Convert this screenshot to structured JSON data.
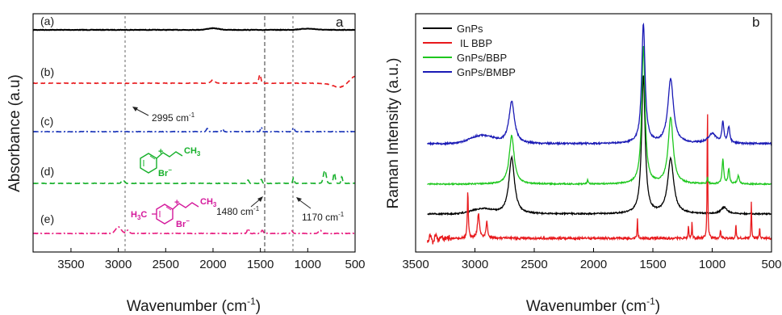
{
  "chart_data": [
    {
      "type": "line",
      "panel": "a",
      "xlabel": "Wavenumber (cm",
      "xlabel_sup": "-1",
      "xlabel_close": ")",
      "ylabel": "Absorbance (a.u)",
      "xlim": [
        3900,
        500
      ],
      "x_reversed": true,
      "x_ticks": [
        "3500",
        "3000",
        "2500",
        "2000",
        "1500",
        "1000",
        "500"
      ],
      "grid": false,
      "legend": "none",
      "series": [
        {
          "name": "(a)",
          "color": "#000000",
          "style": "solid"
        },
        {
          "name": "(b)",
          "color": "#e8191c",
          "style": "dashed"
        },
        {
          "name": "(c)",
          "color": "#1732b8",
          "style": "dash-dot"
        },
        {
          "name": "(d)",
          "color": "#16b02a",
          "style": "dashed"
        },
        {
          "name": "(e)",
          "color": "#e8197e",
          "style": "dash-dot"
        }
      ],
      "annotations": [
        {
          "text": "2995 cm",
          "sup": "-1"
        },
        {
          "text": "1480 cm",
          "sup": "-1"
        },
        {
          "text": "1170 cm",
          "sup": "-1"
        }
      ],
      "reference_lines_x": [
        3000,
        1500,
        1170
      ],
      "structure_labels": {
        "d": {
          "plus": "+",
          "ch3": "CH",
          "ch3_sub": "3",
          "anion": "Br",
          "anion_sup": "−"
        },
        "e": {
          "h3c": "H",
          "h3c_sub": "3",
          "h3c_c": "C",
          "plus": "+",
          "ch3": "CH",
          "ch3_sub": "3",
          "anion": "Br",
          "anion_sup": "−"
        }
      }
    },
    {
      "type": "line",
      "panel": "b",
      "xlabel": "Wavenumber (cm",
      "xlabel_sup": "-1",
      "xlabel_close": ")",
      "ylabel": "Raman Intensity (a.u.)",
      "xlim": [
        3500,
        500
      ],
      "x_reversed": true,
      "x_ticks": [
        "3500",
        "3000",
        "2500",
        "2000",
        "1500",
        "1000",
        "500"
      ],
      "grid": false,
      "legend": "top-left",
      "series": [
        {
          "name": "GnPs",
          "color": "#000000"
        },
        {
          "name": "IL BBP",
          "color": "#e8191c"
        },
        {
          "name": "GnPs/BBP",
          "color": "#1ec71e"
        },
        {
          "name": "GnPs/BMBP",
          "color": "#1a1ab5"
        }
      ]
    }
  ]
}
